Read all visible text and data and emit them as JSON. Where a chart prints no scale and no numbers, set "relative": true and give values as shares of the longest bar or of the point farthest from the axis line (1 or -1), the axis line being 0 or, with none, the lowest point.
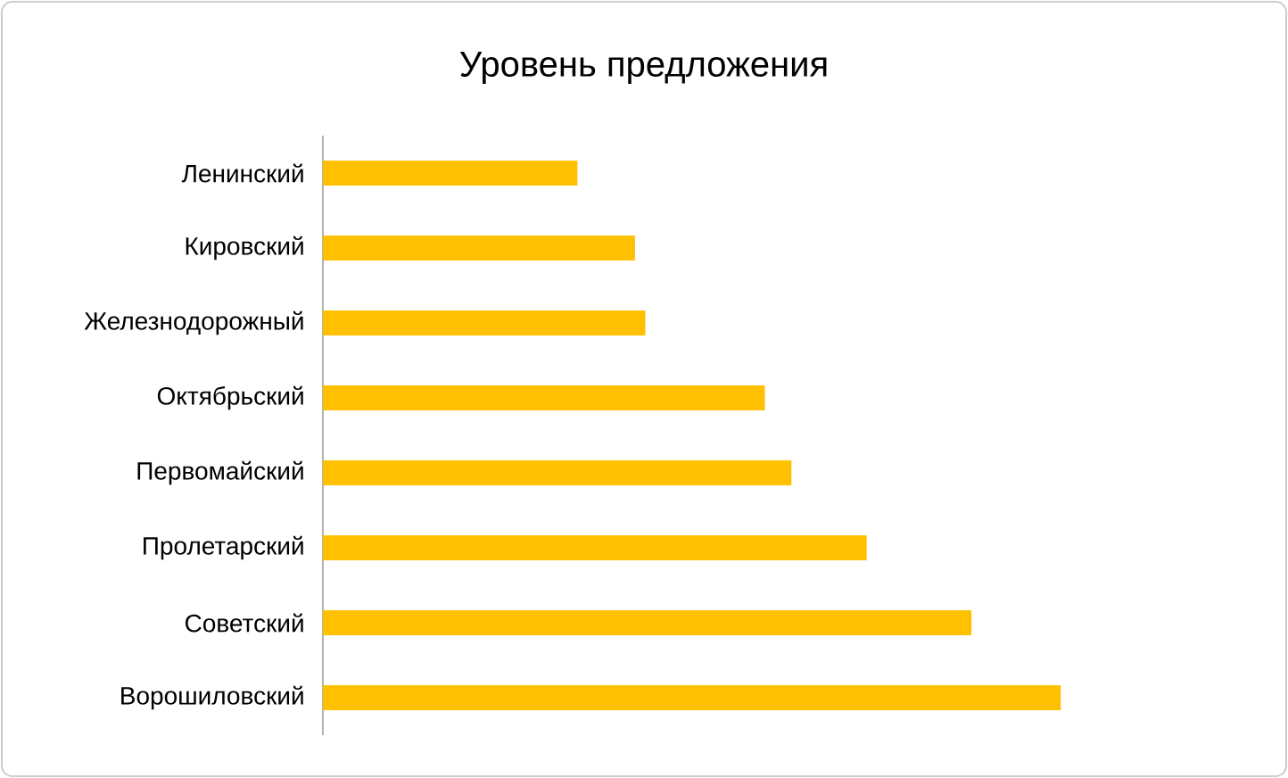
{
  "chart_data": {
    "type": "bar",
    "title": "Уровень предложения",
    "orientation": "horizontal",
    "relative": true,
    "color": "#ffc000",
    "categories": [
      "Ленинский",
      "Кировский",
      "Железнодорожный",
      "Октябрьский",
      "Первомайский",
      "Пролетарский",
      "Советский",
      "Ворошиловский"
    ],
    "values": [
      0.345,
      0.423,
      0.437,
      0.599,
      0.635,
      0.737,
      0.879,
      1
    ]
  }
}
